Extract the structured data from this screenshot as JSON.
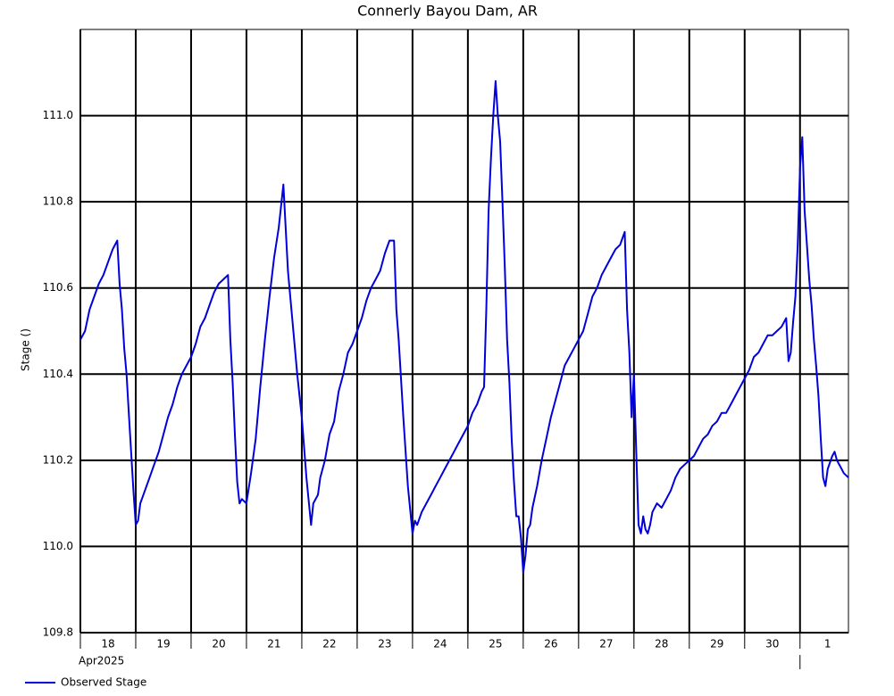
{
  "chart_data": {
    "type": "line",
    "title": "Connerly Bayou Dam, AR",
    "ylabel": "Stage ()",
    "xlabel_month": "Apr2025",
    "xlim": [
      "2025-04-18T00:00",
      "2025-05-01T21:00"
    ],
    "xticks": [
      {
        "value": "2025-04-18",
        "label": "18"
      },
      {
        "value": "2025-04-19",
        "label": "19"
      },
      {
        "value": "2025-04-20",
        "label": "20"
      },
      {
        "value": "2025-04-21",
        "label": "21"
      },
      {
        "value": "2025-04-22",
        "label": "22"
      },
      {
        "value": "2025-04-23",
        "label": "23"
      },
      {
        "value": "2025-04-24",
        "label": "24"
      },
      {
        "value": "2025-04-25",
        "label": "25"
      },
      {
        "value": "2025-04-26",
        "label": "26"
      },
      {
        "value": "2025-04-27",
        "label": "27"
      },
      {
        "value": "2025-04-28",
        "label": "28"
      },
      {
        "value": "2025-04-29",
        "label": "29"
      },
      {
        "value": "2025-04-30",
        "label": "30"
      },
      {
        "value": "2025-05-01",
        "label": "1"
      }
    ],
    "ylim": [
      109.8,
      111.2
    ],
    "yticks": [
      109.8,
      {
        "value": 110,
        "label": "110.0"
      },
      110.2,
      110.4,
      110.6,
      110.8,
      {
        "value": 111,
        "label": "111.0"
      }
    ],
    "grid": true,
    "legend": "bottom-left",
    "x": [
      "2025-04-18T00:00",
      "2025-04-18T02:00",
      "2025-04-18T04:00",
      "2025-04-18T06:00",
      "2025-04-18T08:00",
      "2025-04-18T10:00",
      "2025-04-18T12:00",
      "2025-04-18T14:00",
      "2025-04-18T16:00",
      "2025-04-18T17:00",
      "2025-04-18T18:00",
      "2025-04-18T19:00",
      "2025-04-18T20:00",
      "2025-04-18T21:00",
      "2025-04-18T22:00",
      "2025-04-18T23:00",
      "2025-04-19T00:00",
      "2025-04-19T01:00",
      "2025-04-19T02:00",
      "2025-04-19T04:00",
      "2025-04-19T06:00",
      "2025-04-19T08:00",
      "2025-04-19T10:00",
      "2025-04-19T12:00",
      "2025-04-19T14:00",
      "2025-04-19T16:00",
      "2025-04-19T18:00",
      "2025-04-19T20:00",
      "2025-04-19T22:00",
      "2025-04-20T00:00",
      "2025-04-20T02:00",
      "2025-04-20T04:00",
      "2025-04-20T06:00",
      "2025-04-20T08:00",
      "2025-04-20T10:00",
      "2025-04-20T12:00",
      "2025-04-20T14:00",
      "2025-04-20T16:00",
      "2025-04-20T17:00",
      "2025-04-20T18:00",
      "2025-04-20T19:00",
      "2025-04-20T20:00",
      "2025-04-20T21:00",
      "2025-04-20T22:00",
      "2025-04-21T00:00",
      "2025-04-21T02:00",
      "2025-04-21T04:00",
      "2025-04-21T06:00",
      "2025-04-21T08:00",
      "2025-04-21T10:00",
      "2025-04-21T12:00",
      "2025-04-21T14:00",
      "2025-04-21T16:00",
      "2025-04-21T18:00",
      "2025-04-21T20:00",
      "2025-04-21T22:00",
      "2025-04-22T00:00",
      "2025-04-22T02:00",
      "2025-04-22T04:00",
      "2025-04-22T05:00",
      "2025-04-22T07:00",
      "2025-04-22T08:00",
      "2025-04-22T10:00",
      "2025-04-22T12:00",
      "2025-04-22T14:00",
      "2025-04-22T16:00",
      "2025-04-22T18:00",
      "2025-04-22T20:00",
      "2025-04-22T22:00",
      "2025-04-23T00:00",
      "2025-04-23T02:00",
      "2025-04-23T04:00",
      "2025-04-23T06:00",
      "2025-04-23T08:00",
      "2025-04-23T10:00",
      "2025-04-23T12:00",
      "2025-04-23T14:00",
      "2025-04-23T16:00",
      "2025-04-23T17:00",
      "2025-04-23T18:00",
      "2025-04-23T20:00",
      "2025-04-23T22:00",
      "2025-04-24T00:00",
      "2025-04-24T01:00",
      "2025-04-24T02:00",
      "2025-04-24T04:00",
      "2025-04-24T06:00",
      "2025-04-24T08:00",
      "2025-04-24T10:00",
      "2025-04-24T12:00",
      "2025-04-24T14:00",
      "2025-04-24T16:00",
      "2025-04-24T18:00",
      "2025-04-24T20:00",
      "2025-04-24T22:00",
      "2025-04-25T00:00",
      "2025-04-25T02:00",
      "2025-04-25T04:00",
      "2025-04-25T06:00",
      "2025-04-25T07:00",
      "2025-04-25T08:00",
      "2025-04-25T09:00",
      "2025-04-25T10:00",
      "2025-04-25T11:00",
      "2025-04-25T12:00",
      "2025-04-25T13:00",
      "2025-04-25T14:00",
      "2025-04-25T15:00",
      "2025-04-25T16:00",
      "2025-04-25T17:00",
      "2025-04-25T18:00",
      "2025-04-25T19:00",
      "2025-04-25T20:00",
      "2025-04-25T21:00",
      "2025-04-25T22:00",
      "2025-04-25T23:00",
      "2025-04-26T00:00",
      "2025-04-26T01:00",
      "2025-04-26T02:00",
      "2025-04-26T03:00",
      "2025-04-26T04:00",
      "2025-04-26T06:00",
      "2025-04-26T08:00",
      "2025-04-26T10:00",
      "2025-04-26T12:00",
      "2025-04-26T14:00",
      "2025-04-26T16:00",
      "2025-04-26T18:00",
      "2025-04-26T20:00",
      "2025-04-26T22:00",
      "2025-04-27T00:00",
      "2025-04-27T02:00",
      "2025-04-27T04:00",
      "2025-04-27T06:00",
      "2025-04-27T08:00",
      "2025-04-27T10:00",
      "2025-04-27T12:00",
      "2025-04-27T14:00",
      "2025-04-27T16:00",
      "2025-04-27T18:00",
      "2025-04-27T20:00",
      "2025-04-27T21:00",
      "2025-04-27T22:00",
      "2025-04-27T23:00",
      "2025-04-28T00:00",
      "2025-04-28T01:00",
      "2025-04-28T02:00",
      "2025-04-28T03:00",
      "2025-04-28T04:00",
      "2025-04-28T05:00",
      "2025-04-28T06:00",
      "2025-04-28T07:00",
      "2025-04-28T08:00",
      "2025-04-28T10:00",
      "2025-04-28T12:00",
      "2025-04-28T14:00",
      "2025-04-28T16:00",
      "2025-04-28T18:00",
      "2025-04-28T20:00",
      "2025-04-28T22:00",
      "2025-04-29T00:00",
      "2025-04-29T02:00",
      "2025-04-29T04:00",
      "2025-04-29T06:00",
      "2025-04-29T08:00",
      "2025-04-29T10:00",
      "2025-04-29T12:00",
      "2025-04-29T14:00",
      "2025-04-29T16:00",
      "2025-04-29T18:00",
      "2025-04-29T20:00",
      "2025-04-29T22:00",
      "2025-04-30T00:00",
      "2025-04-30T02:00",
      "2025-04-30T04:00",
      "2025-04-30T06:00",
      "2025-04-30T08:00",
      "2025-04-30T10:00",
      "2025-04-30T12:00",
      "2025-04-30T14:00",
      "2025-04-30T16:00",
      "2025-04-30T18:00",
      "2025-04-30T19:00",
      "2025-04-30T20:00",
      "2025-04-30T21:00",
      "2025-04-30T22:00",
      "2025-04-30T23:00",
      "2025-05-01T00:00",
      "2025-05-01T01:00",
      "2025-05-01T02:00",
      "2025-05-01T03:00",
      "2025-05-01T04:00",
      "2025-05-01T05:00",
      "2025-05-01T06:00",
      "2025-05-01T07:00",
      "2025-05-01T08:00",
      "2025-05-01T09:00",
      "2025-05-01T10:00",
      "2025-05-01T11:00",
      "2025-05-01T12:00",
      "2025-05-01T14:00",
      "2025-05-01T15:00",
      "2025-05-01T16:00",
      "2025-05-01T18:00",
      "2025-05-01T19:00",
      "2025-05-01T21:00"
    ],
    "series": [
      {
        "name": "Observed Stage",
        "color": "#0000dd",
        "values": [
          110.48,
          110.5,
          110.55,
          110.58,
          110.61,
          110.63,
          110.66,
          110.69,
          110.71,
          110.61,
          110.55,
          110.46,
          110.4,
          110.31,
          110.22,
          110.13,
          110.05,
          110.06,
          110.1,
          110.13,
          110.16,
          110.19,
          110.22,
          110.26,
          110.3,
          110.33,
          110.37,
          110.4,
          110.42,
          110.44,
          110.47,
          110.51,
          110.53,
          110.56,
          110.59,
          110.61,
          110.62,
          110.63,
          110.48,
          110.38,
          110.26,
          110.15,
          110.1,
          110.11,
          110.1,
          110.17,
          110.25,
          110.37,
          110.48,
          110.58,
          110.67,
          110.74,
          110.84,
          110.64,
          110.52,
          110.4,
          110.3,
          110.16,
          110.05,
          110.1,
          110.12,
          110.16,
          110.2,
          110.26,
          110.29,
          110.36,
          110.4,
          110.45,
          110.47,
          110.5,
          110.53,
          110.57,
          110.6,
          110.62,
          110.64,
          110.68,
          110.71,
          110.71,
          110.55,
          110.48,
          110.3,
          110.14,
          110.03,
          110.06,
          110.05,
          110.08,
          110.1,
          110.12,
          110.14,
          110.16,
          110.18,
          110.2,
          110.22,
          110.24,
          110.26,
          110.28,
          110.31,
          110.33,
          110.36,
          110.37,
          110.55,
          110.78,
          110.9,
          111.0,
          111.08,
          111.0,
          110.94,
          110.8,
          110.65,
          110.48,
          110.38,
          110.25,
          110.15,
          110.07,
          110.07,
          110.02,
          109.94,
          109.98,
          110.04,
          110.05,
          110.09,
          110.14,
          110.2,
          110.25,
          110.3,
          110.34,
          110.38,
          110.42,
          110.44,
          110.46,
          110.48,
          110.5,
          110.54,
          110.58,
          110.6,
          110.63,
          110.65,
          110.67,
          110.69,
          110.7,
          110.73,
          110.55,
          110.45,
          110.3,
          110.4,
          110.22,
          110.05,
          110.03,
          110.07,
          110.04,
          110.03,
          110.05,
          110.08,
          110.1,
          110.09,
          110.11,
          110.13,
          110.16,
          110.18,
          110.19,
          110.2,
          110.21,
          110.23,
          110.25,
          110.26,
          110.28,
          110.29,
          110.31,
          110.31,
          110.33,
          110.35,
          110.37,
          110.39,
          110.41,
          110.44,
          110.45,
          110.47,
          110.49,
          110.49,
          110.5,
          110.51,
          110.53,
          110.43,
          110.45,
          110.52,
          110.58,
          110.7,
          110.88,
          110.95,
          110.78,
          110.7,
          110.62,
          110.56,
          110.48,
          110.42,
          110.35,
          110.25,
          110.16,
          110.14,
          110.18,
          110.21,
          110.22,
          110.2,
          110.18,
          110.17,
          110.16
        ]
      }
    ]
  }
}
